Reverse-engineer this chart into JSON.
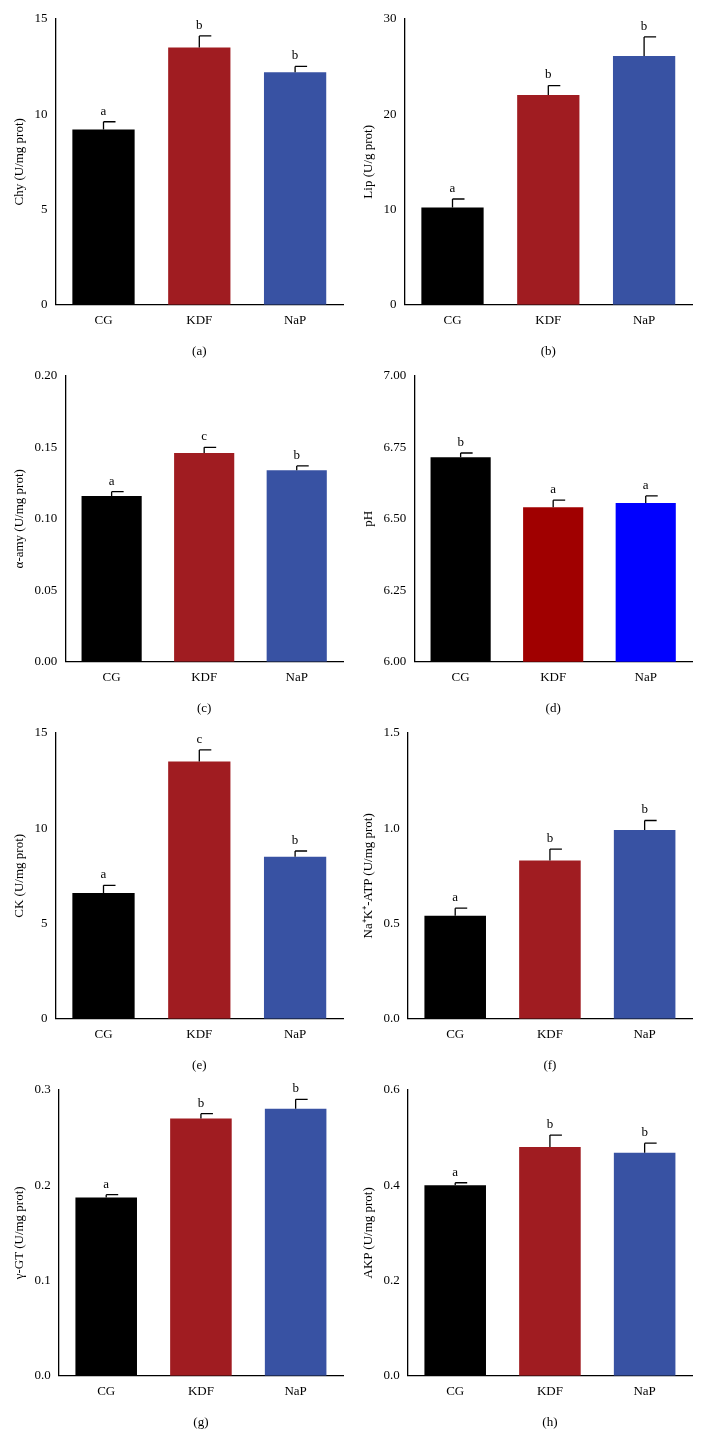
{
  "chart_data": [
    {
      "type": "bar",
      "categories": [
        "CG",
        "KDF",
        "NaP"
      ],
      "values": [
        9.2,
        13.5,
        12.2
      ],
      "colors": [
        "#000000",
        "#a01c21",
        "#3852a3"
      ],
      "errors": [
        [
          9.2,
          9.6
        ],
        [
          13.5,
          14.1
        ],
        [
          12.2,
          12.5
        ]
      ],
      "ylabel": "Chy (U/mg prot)",
      "xlabel": "(a)",
      "ylim": [
        0,
        15
      ],
      "yticks": [
        0,
        5,
        10,
        15
      ],
      "grid": false,
      "annotations": [
        {
          "text": "a",
          "x": "CG",
          "y": 9.6
        },
        {
          "text": "b",
          "x": "KDF",
          "y": 14.1
        },
        {
          "text": "b",
          "x": "NaP",
          "y": 12.5
        }
      ]
    },
    {
      "type": "bar",
      "categories": [
        "CG",
        "KDF",
        "NaP"
      ],
      "values": [
        10.2,
        22,
        26.1
      ],
      "colors": [
        "#000000",
        "#a01c21",
        "#3852a3"
      ],
      "errors": [
        [
          10.2,
          11.1
        ],
        [
          22,
          23
        ],
        [
          26.1,
          28.1
        ]
      ],
      "ylabel": "Lip (U/g prot)",
      "xlabel": "(b)",
      "ylim": [
        0,
        30
      ],
      "yticks": [
        0,
        10,
        20,
        30
      ],
      "grid": false,
      "annotations": [
        {
          "text": "a",
          "x": "CG",
          "y": 11.1
        },
        {
          "text": "b",
          "x": "KDF",
          "y": 23
        },
        {
          "text": "b",
          "x": "NaP",
          "y": 28.1
        }
      ]
    },
    {
      "type": "bar",
      "categories": [
        "CG",
        "KDF",
        "NaP"
      ],
      "values": [
        0.116,
        0.146,
        0.134
      ],
      "colors": [
        "#000000",
        "#a01c21",
        "#3852a3"
      ],
      "errors": [
        [
          0.116,
          0.119
        ],
        [
          0.146,
          0.15
        ],
        [
          0.134,
          0.137
        ]
      ],
      "ylabel": "α-amy (U/mg prot)",
      "xlabel": "(c)",
      "ylim": [
        0,
        0.2
      ],
      "yticks": [
        {
          "value": 0,
          "label": "0.00"
        },
        {
          "value": 0.05,
          "label": "0.05"
        },
        {
          "value": 0.1,
          "label": "0.10"
        },
        {
          "value": 0.15,
          "label": "0.15"
        },
        {
          "value": 0.2,
          "label": "0.20"
        }
      ],
      "grid": false,
      "annotations": [
        {
          "text": "a",
          "x": "CG",
          "y": 0.119
        },
        {
          "text": "c",
          "x": "KDF",
          "y": 0.15
        },
        {
          "text": "b",
          "x": "NaP",
          "y": 0.137
        }
      ]
    },
    {
      "type": "bar",
      "categories": [
        "CG",
        "KDF",
        "NaP"
      ],
      "values": [
        6.715,
        6.54,
        6.555
      ],
      "colors": [
        "#000000",
        "#a00000",
        "#0000ff"
      ],
      "errors": [
        [
          6.715,
          6.73
        ],
        [
          6.54,
          6.565
        ],
        [
          6.555,
          6.58
        ]
      ],
      "ylabel": "pH",
      "xlabel": "(d)",
      "ylim": [
        6,
        7
      ],
      "yticks": [
        {
          "value": 6,
          "label": "6.00"
        },
        {
          "value": 6.25,
          "label": "6.25"
        },
        {
          "value": 6.5,
          "label": "6.50"
        },
        {
          "value": 6.75,
          "label": "6.75"
        },
        {
          "value": 7,
          "label": "7.00"
        }
      ],
      "grid": false,
      "annotations": [
        {
          "text": "b",
          "x": "CG",
          "y": 6.73
        },
        {
          "text": "a",
          "x": "KDF",
          "y": 6.565
        },
        {
          "text": "a",
          "x": "NaP",
          "y": 6.58
        }
      ]
    },
    {
      "type": "bar",
      "categories": [
        "CG",
        "KDF",
        "NaP"
      ],
      "values": [
        6.6,
        13.5,
        8.5
      ],
      "colors": [
        "#000000",
        "#a01c21",
        "#3852a3"
      ],
      "errors": [
        [
          6.6,
          7
        ],
        [
          13.5,
          14.1
        ],
        [
          8.5,
          8.8
        ]
      ],
      "ylabel": "CK (U/mg prot)",
      "xlabel": "(e)",
      "ylim": [
        0,
        15
      ],
      "yticks": [
        0,
        5,
        10,
        15
      ],
      "grid": false,
      "annotations": [
        {
          "text": "a",
          "x": "CG",
          "y": 7
        },
        {
          "text": "c",
          "x": "KDF",
          "y": 14.1
        },
        {
          "text": "b",
          "x": "NaP",
          "y": 8.8
        }
      ]
    },
    {
      "type": "bar",
      "categories": [
        "CG",
        "KDF",
        "NaP"
      ],
      "values": [
        0.54,
        0.83,
        0.99
      ],
      "colors": [
        "#000000",
        "#a01c21",
        "#3852a3"
      ],
      "errors": [
        [
          0.54,
          0.58
        ],
        [
          0.83,
          0.89
        ],
        [
          0.99,
          1.04
        ]
      ],
      "ylabel": "Na⁺K⁺-ATP (U/mg prot)",
      "xlabel": "(f)",
      "ylim": [
        0,
        1.5
      ],
      "yticks": [
        {
          "value": 0,
          "label": "0.0"
        },
        {
          "value": 0.5,
          "label": "0.5"
        },
        {
          "value": 1,
          "label": "1.0"
        },
        {
          "value": 1.5,
          "label": "1.5"
        }
      ],
      "grid": false,
      "annotations": [
        {
          "text": "a",
          "x": "CG",
          "y": 0.58
        },
        {
          "text": "b",
          "x": "KDF",
          "y": 0.89
        },
        {
          "text": "b",
          "x": "NaP",
          "y": 1.04
        }
      ]
    },
    {
      "type": "bar",
      "categories": [
        "CG",
        "KDF",
        "NaP"
      ],
      "values": [
        0.187,
        0.27,
        0.28
      ],
      "colors": [
        "#000000",
        "#a01c21",
        "#3852a3"
      ],
      "errors": [
        [
          0.187,
          0.19
        ],
        [
          0.27,
          0.275
        ],
        [
          0.28,
          0.29
        ]
      ],
      "ylabel": "γ-GT (U/mg prot)",
      "xlabel": "(g)",
      "ylim": [
        0,
        0.3
      ],
      "yticks": [
        {
          "value": 0,
          "label": "0.0"
        },
        {
          "value": 0.1,
          "label": "0.1"
        },
        {
          "value": 0.2,
          "label": "0.2"
        },
        {
          "value": 0.3,
          "label": "0.3"
        }
      ],
      "grid": false,
      "annotations": [
        {
          "text": "a",
          "x": "CG",
          "y": 0.19
        },
        {
          "text": "b",
          "x": "KDF",
          "y": 0.275
        },
        {
          "text": "b",
          "x": "NaP",
          "y": 0.29
        }
      ]
    },
    {
      "type": "bar",
      "categories": [
        "CG",
        "KDF",
        "NaP"
      ],
      "values": [
        0.4,
        0.48,
        0.468
      ],
      "colors": [
        "#000000",
        "#a01c21",
        "#3852a3"
      ],
      "errors": [
        [
          0.4,
          0.405
        ],
        [
          0.48,
          0.505
        ],
        [
          0.468,
          0.488
        ]
      ],
      "ylabel": "AKP (U/mg prot)",
      "xlabel": "(h)",
      "ylim": [
        0,
        0.6
      ],
      "yticks": [
        {
          "value": 0,
          "label": "0.0"
        },
        {
          "value": 0.2,
          "label": "0.2"
        },
        {
          "value": 0.4,
          "label": "0.4"
        },
        {
          "value": 0.6,
          "label": "0.6"
        }
      ],
      "grid": false,
      "annotations": [
        {
          "text": "a",
          "x": "CG",
          "y": 0.405
        },
        {
          "text": "b",
          "x": "KDF",
          "y": 0.505
        },
        {
          "text": "b",
          "x": "NaP",
          "y": 0.488
        }
      ]
    }
  ]
}
